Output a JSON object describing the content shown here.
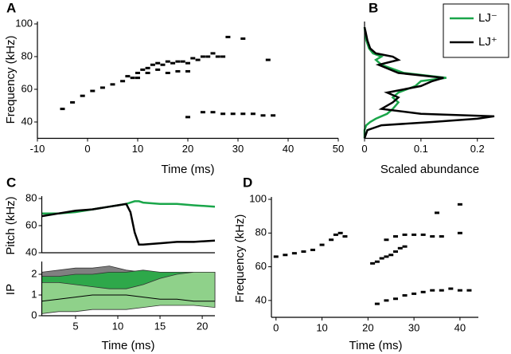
{
  "chart_data": [
    {
      "type": "scatter",
      "panel": "A",
      "xlabel": "Time (ms)",
      "ylabel": "Frequency (kHz)",
      "xlim": [
        -10,
        50
      ],
      "xticks": [
        -10,
        0,
        10,
        20,
        30,
        40,
        50
      ],
      "ylim": [
        30,
        100
      ],
      "yticks": [
        40,
        60,
        80,
        100
      ],
      "color": "#000000",
      "x": [
        -5,
        -3,
        -1,
        1,
        3,
        5,
        7,
        9,
        10,
        11,
        12,
        13,
        14,
        15,
        16,
        17,
        18,
        19,
        20,
        21,
        22,
        23,
        24,
        25,
        26,
        27,
        8,
        10,
        12,
        14,
        16,
        18,
        20,
        23,
        25,
        27,
        29,
        31,
        33,
        35,
        37,
        28,
        31,
        20,
        36
      ],
      "y": [
        48,
        52,
        56,
        59,
        61,
        63,
        65,
        67,
        70,
        72,
        73,
        75,
        76,
        75,
        77,
        76,
        77,
        77,
        76,
        79,
        78,
        80,
        80,
        82,
        80,
        80,
        68,
        67,
        70,
        72,
        70,
        71,
        71,
        46,
        46,
        45,
        45,
        45,
        45,
        44,
        44,
        92,
        91,
        43,
        78
      ]
    },
    {
      "type": "line",
      "orientation": "horizontal",
      "panel": "B",
      "xlabel": "Scaled abundance",
      "xlim": [
        0,
        0.23
      ],
      "xticks": [
        0,
        0.1,
        0.2
      ],
      "ylim": [
        30,
        100
      ],
      "legend": "upper right",
      "y": [
        30,
        35,
        38,
        40,
        42,
        43.5,
        45,
        48,
        52,
        55,
        58,
        62,
        65,
        67,
        70,
        75,
        78,
        80,
        82,
        85,
        90,
        95,
        98
      ],
      "series": [
        {
          "name": "LJ⁻",
          "color": "#1aa64a",
          "values": [
            0,
            0,
            0.003,
            0.01,
            0.02,
            0.03,
            0.04,
            0.05,
            0.06,
            0.05,
            0.06,
            0.09,
            0.1,
            0.145,
            0.07,
            0.03,
            0.02,
            0.03,
            0.015,
            0.008,
            0.003,
            0.001,
            0
          ]
        },
        {
          "name": "LJ⁺",
          "color": "#000000",
          "values": [
            0,
            0.005,
            0.03,
            0.12,
            0.2,
            0.23,
            0.1,
            0.03,
            0.05,
            0.06,
            0.04,
            0.1,
            0.12,
            0.14,
            0.06,
            0.025,
            0.06,
            0.05,
            0.02,
            0.01,
            0.005,
            0.002,
            0
          ]
        }
      ]
    },
    {
      "type": "line",
      "panel": "C",
      "ylabel": "Pitch (kHz)",
      "xlim": [
        1,
        21.5
      ],
      "ylim": [
        40,
        80
      ],
      "yticks": [
        40,
        60,
        80
      ],
      "x": [
        1,
        3,
        5,
        7,
        9,
        10,
        11,
        11.5,
        12,
        12.5,
        13,
        15,
        17,
        19,
        21.5
      ],
      "series": [
        {
          "color": "#1aa64a",
          "values": [
            69,
            69,
            70,
            72,
            74,
            75,
            76,
            77,
            78,
            78,
            77,
            76,
            76,
            75,
            74
          ]
        },
        {
          "color": "#000000",
          "values": [
            67,
            69,
            71,
            72,
            74,
            75,
            76,
            70,
            55,
            46,
            46,
            47,
            48,
            48,
            49
          ]
        }
      ]
    },
    {
      "type": "area",
      "xlabel": "Time (ms)",
      "ylabel": "IP",
      "xlim": [
        1,
        21.5
      ],
      "xticks": [
        5,
        10,
        15,
        20
      ],
      "ylim": [
        0,
        2.5
      ],
      "yticks": [
        0,
        1,
        2
      ],
      "x": [
        1,
        3,
        5,
        7,
        9,
        11,
        13,
        15,
        17,
        19,
        21.5
      ],
      "bands": [
        {
          "color": "#808080",
          "lower": [
            0.7,
            0.8,
            0.9,
            1.0,
            1.0,
            1.0,
            0.9,
            0.8,
            0.8,
            0.7,
            0.7
          ],
          "upper": [
            2.1,
            2.2,
            2.3,
            2.3,
            2.4,
            2.2,
            2.1,
            2.1,
            2.1,
            2.1,
            2.1
          ]
        },
        {
          "color": "#2ea84a",
          "lower": [
            0.9,
            0.9,
            1.0,
            1.0,
            1.1,
            1.1,
            1.0,
            0.9,
            0.9,
            0.8,
            0.8
          ],
          "upper": [
            1.9,
            1.9,
            2.0,
            2.0,
            2.1,
            2.1,
            2.2,
            2.1,
            2.1,
            2.1,
            2.1
          ]
        },
        {
          "color": "#8fd18a",
          "lower": [
            0.1,
            0.2,
            0.2,
            0.3,
            0.3,
            0.3,
            0.4,
            0.5,
            0.5,
            0.5,
            0.4
          ],
          "upper": [
            1.6,
            1.6,
            1.5,
            1.4,
            1.3,
            1.3,
            1.5,
            1.8,
            2.0,
            2.1,
            2.1
          ]
        }
      ],
      "series": [
        {
          "color": "#000000",
          "values": [
            0.7,
            0.8,
            0.9,
            1.0,
            1.0,
            1.0,
            0.9,
            0.8,
            0.8,
            0.7,
            0.7
          ]
        }
      ]
    },
    {
      "type": "scatter",
      "panel": "D",
      "xlabel": "Time (ms)",
      "ylabel": "Frequency (kHz)",
      "xlim": [
        -1,
        44
      ],
      "xticks": [
        0,
        10,
        20,
        30,
        40
      ],
      "ylim": [
        30,
        100
      ],
      "yticks": [
        40,
        60,
        80,
        100
      ],
      "color": "#000000",
      "x": [
        0,
        2,
        4,
        6,
        8,
        10,
        12,
        13,
        14,
        15,
        21,
        22,
        23,
        24,
        25,
        26,
        27,
        28,
        24,
        26,
        28,
        30,
        32,
        34,
        36,
        40,
        22,
        24,
        26,
        28,
        30,
        32,
        34,
        36,
        38,
        40,
        42,
        35,
        40
      ],
      "y": [
        66,
        67,
        68,
        69,
        70,
        73,
        76,
        79,
        80,
        78,
        62,
        63,
        65,
        66,
        67,
        69,
        71,
        72,
        76,
        78,
        79,
        79,
        79,
        78,
        78,
        80,
        38,
        40,
        41,
        43,
        44,
        45,
        46,
        46,
        47,
        46,
        46,
        92,
        97
      ]
    }
  ]
}
